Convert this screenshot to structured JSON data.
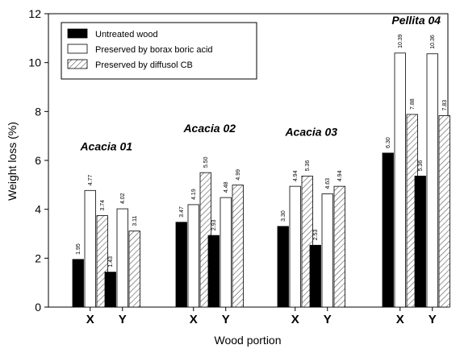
{
  "chart_data": {
    "type": "bar",
    "ylabel": "Weight loss (%)",
    "xlabel": "Wood portion",
    "ylim": [
      0,
      12
    ],
    "yticks": [
      "0",
      "2",
      "4",
      "6",
      "8",
      "10",
      "12"
    ],
    "legend_position": "top-left",
    "colors": {
      "Untreated wood": "#000000",
      "Preserved by borax boric acid": "#ffffff",
      "Preserved by diffusol CB": "hatched"
    },
    "groups": [
      {
        "label": "Acacia 01",
        "portions": [
          "X",
          "Y"
        ]
      },
      {
        "label": "Acacia 02",
        "portions": [
          "X",
          "Y"
        ]
      },
      {
        "label": "Acacia 03",
        "portions": [
          "X",
          "Y"
        ]
      },
      {
        "label": "Pellita 04",
        "portions": [
          "X",
          "Y"
        ]
      }
    ],
    "categories": [
      "Acacia 01 X",
      "Acacia 01 Y",
      "Acacia 02 X",
      "Acacia 02 Y",
      "Acacia 03 X",
      "Acacia 03 Y",
      "Pellita 04 X",
      "Pellita 04 Y"
    ],
    "series": [
      {
        "name": "Untreated wood",
        "values": [
          1.95,
          1.43,
          3.47,
          2.93,
          3.3,
          2.53,
          6.3,
          5.36
        ],
        "labels": [
          "1.95",
          "1.43",
          "3.47",
          "2.93",
          "3.30",
          "2.53",
          "6.30",
          "5.36"
        ]
      },
      {
        "name": "Preserved by borax boric acid",
        "values": [
          4.77,
          4.02,
          4.19,
          4.48,
          4.94,
          4.63,
          10.39,
          10.36
        ],
        "labels": [
          "4.77",
          "4.02",
          "4.19",
          "4.48",
          "4.94",
          "4.63",
          "10.39",
          "10.36"
        ]
      },
      {
        "name": "Preserved by diffusol CB",
        "values": [
          3.74,
          3.11,
          5.5,
          4.99,
          5.36,
          4.94,
          7.88,
          7.83
        ],
        "labels": [
          "3.74",
          "3.11",
          "5.50",
          "4.99",
          "5.36",
          "4.94",
          "7.88",
          "7.83"
        ]
      }
    ]
  }
}
